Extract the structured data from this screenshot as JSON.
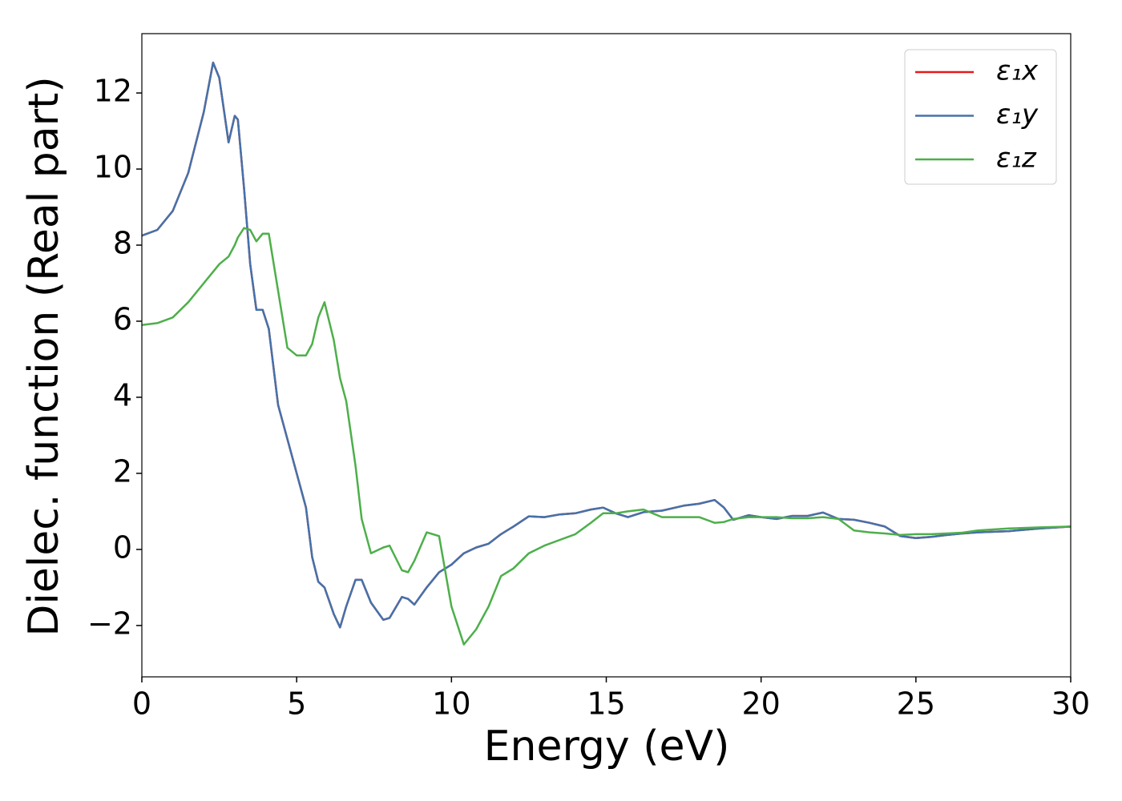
{
  "chart_data": {
    "type": "line",
    "xlabel": "Energy (eV)",
    "ylabel": "Dielec. function (Real part)",
    "x": [
      0,
      0.5,
      1.0,
      1.5,
      2.0,
      2.3,
      2.5,
      2.8,
      3.0,
      3.1,
      3.3,
      3.5,
      3.7,
      3.9,
      4.1,
      4.4,
      4.7,
      5.0,
      5.3,
      5.5,
      5.7,
      5.9,
      6.2,
      6.4,
      6.6,
      6.9,
      7.1,
      7.4,
      7.8,
      8.0,
      8.4,
      8.6,
      8.8,
      9.2,
      9.6,
      10.0,
      10.4,
      10.8,
      11.2,
      11.6,
      12.0,
      12.5,
      13.0,
      13.5,
      14.0,
      14.5,
      14.9,
      15.3,
      15.7,
      16.2,
      16.8,
      17.5,
      18.0,
      18.5,
      18.8,
      19.1,
      19.6,
      20.0,
      20.5,
      21.0,
      21.5,
      22.0,
      22.5,
      23.0,
      23.5,
      24.0,
      24.5,
      25.0,
      25.5,
      26.0,
      26.5,
      27.0,
      28.0,
      29.0,
      30.0
    ],
    "series": [
      {
        "name": "ε₁x",
        "color": "#e41a1c",
        "values": [
          8.25,
          8.4,
          8.9,
          9.9,
          11.5,
          12.8,
          12.4,
          10.7,
          11.4,
          11.3,
          9.5,
          7.5,
          6.3,
          6.3,
          5.8,
          3.8,
          2.9,
          2.0,
          1.1,
          -0.2,
          -0.85,
          -1.0,
          -1.7,
          -2.05,
          -1.5,
          -0.8,
          -0.8,
          -1.4,
          -1.85,
          -1.8,
          -1.25,
          -1.3,
          -1.45,
          -1.0,
          -0.6,
          -0.4,
          -0.1,
          0.05,
          0.15,
          0.4,
          0.6,
          0.87,
          0.85,
          0.92,
          0.95,
          1.05,
          1.1,
          0.95,
          0.85,
          0.98,
          1.02,
          1.15,
          1.2,
          1.3,
          1.1,
          0.78,
          0.9,
          0.85,
          0.8,
          0.88,
          0.88,
          0.97,
          0.8,
          0.78,
          0.7,
          0.6,
          0.35,
          0.3,
          0.33,
          0.38,
          0.42,
          0.45,
          0.48,
          0.55,
          0.6
        ]
      },
      {
        "name": "ε₁y",
        "color": "#4472aa",
        "values": [
          8.25,
          8.4,
          8.9,
          9.9,
          11.5,
          12.8,
          12.4,
          10.7,
          11.4,
          11.3,
          9.5,
          7.5,
          6.3,
          6.3,
          5.8,
          3.8,
          2.9,
          2.0,
          1.1,
          -0.2,
          -0.85,
          -1.0,
          -1.7,
          -2.05,
          -1.5,
          -0.8,
          -0.8,
          -1.4,
          -1.85,
          -1.8,
          -1.25,
          -1.3,
          -1.45,
          -1.0,
          -0.6,
          -0.4,
          -0.1,
          0.05,
          0.15,
          0.4,
          0.6,
          0.87,
          0.85,
          0.92,
          0.95,
          1.05,
          1.1,
          0.95,
          0.85,
          0.98,
          1.02,
          1.15,
          1.2,
          1.3,
          1.1,
          0.78,
          0.9,
          0.85,
          0.8,
          0.88,
          0.88,
          0.97,
          0.8,
          0.78,
          0.7,
          0.6,
          0.35,
          0.3,
          0.33,
          0.38,
          0.42,
          0.45,
          0.48,
          0.55,
          0.6
        ]
      },
      {
        "name": "ε₁z",
        "color": "#4daf4a",
        "values": [
          5.9,
          5.95,
          6.1,
          6.5,
          7.0,
          7.3,
          7.5,
          7.7,
          8.0,
          8.2,
          8.45,
          8.4,
          8.1,
          8.3,
          8.3,
          6.8,
          5.3,
          5.1,
          5.1,
          5.4,
          6.1,
          6.5,
          5.5,
          4.5,
          3.9,
          2.2,
          0.8,
          -0.1,
          0.05,
          0.1,
          -0.55,
          -0.6,
          -0.3,
          0.45,
          0.35,
          -1.5,
          -2.5,
          -2.1,
          -1.5,
          -0.7,
          -0.5,
          -0.1,
          0.1,
          0.25,
          0.4,
          0.7,
          0.95,
          0.95,
          1.0,
          1.05,
          0.85,
          0.85,
          0.85,
          0.7,
          0.72,
          0.8,
          0.85,
          0.85,
          0.85,
          0.82,
          0.82,
          0.85,
          0.8,
          0.5,
          0.45,
          0.42,
          0.38,
          0.4,
          0.4,
          0.42,
          0.44,
          0.5,
          0.55,
          0.58,
          0.6
        ]
      }
    ],
    "xlim": [
      0,
      30
    ],
    "xticks": [
      0,
      5,
      10,
      15,
      20,
      25,
      30
    ],
    "ylim": [
      -3.35,
      13.56
    ],
    "yticks": [
      {
        "value": -2,
        "label": "−2"
      },
      0,
      2,
      4,
      6,
      8,
      10,
      12
    ],
    "grid": false,
    "legend": "upper right"
  }
}
